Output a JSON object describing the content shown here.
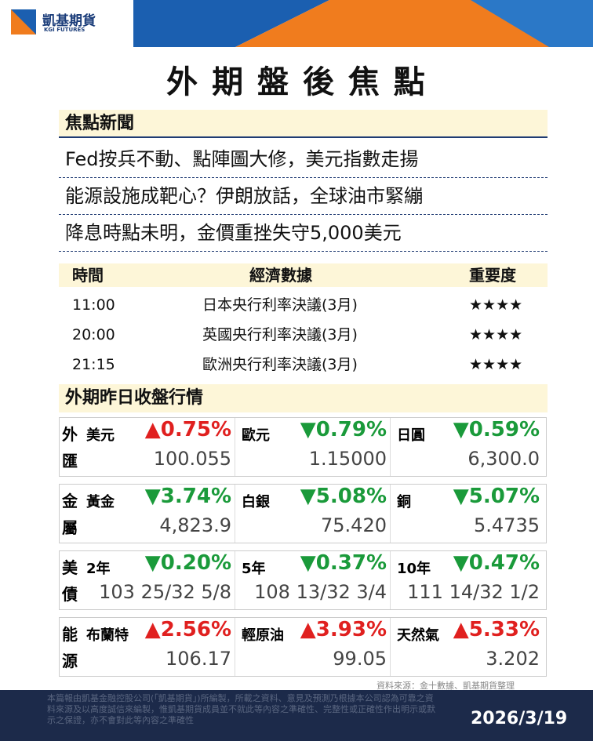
{
  "header": {
    "logo_name": "凱基期貨",
    "logo_sub": "KGI FUTURES",
    "title": "外 期 盤 後 焦 點"
  },
  "news": {
    "heading": "焦點新聞",
    "items": [
      "Fed按兵不動、點陣圖大修，美元指數走揚",
      "能源設施成靶心？伊朗放話，全球油市緊繃",
      "降息時點未明，金價重挫失守5,000美元"
    ]
  },
  "calendar": {
    "columns": [
      "時間",
      "經濟數據",
      "重要度"
    ],
    "rows": [
      [
        "11:00",
        "日本央行利率決議(3月)",
        "★★★★"
      ],
      [
        "20:00",
        "英國央行利率決議(3月)",
        "★★★★"
      ],
      [
        "21:15",
        "歐洲央行利率決議(3月)",
        "★★★★"
      ]
    ]
  },
  "market": {
    "heading": "外期昨日收盤行情",
    "groups": [
      {
        "label": "外匯",
        "items": [
          {
            "name": "美元",
            "change": "▲0.75%",
            "value": "100.055"
          },
          {
            "name": "歐元",
            "change": "▼0.79%",
            "value": "1.15000"
          },
          {
            "name": "日圓",
            "change": "▼0.59%",
            "value": "6,300.0"
          }
        ]
      },
      {
        "label": "金屬",
        "items": [
          {
            "name": "黃金",
            "change": "▼3.74%",
            "value": "4,823.9"
          },
          {
            "name": "白銀",
            "change": "▼5.08%",
            "value": "75.420"
          },
          {
            "name": "銅",
            "change": "▼5.07%",
            "value": "5.4735"
          }
        ]
      },
      {
        "label": "美債",
        "items": [
          {
            "name": "2年",
            "change": "▼0.20%",
            "value": "103 25/32 5/8"
          },
          {
            "name": "5年",
            "change": "▼0.37%",
            "value": "108 13/32 3/4"
          },
          {
            "name": "10年",
            "change": "▼0.47%",
            "value": "111 14/32 1/2"
          }
        ]
      },
      {
        "label": "能源",
        "items": [
          {
            "name": "布蘭特",
            "change": "▲2.56%",
            "value": "106.17"
          },
          {
            "name": "輕原油",
            "change": "▲3.93%",
            "value": "99.05"
          },
          {
            "name": "天然氣",
            "change": "▲5.33%",
            "value": "3.202"
          }
        ]
      }
    ]
  },
  "source": "資料來源：金十數據、凱基期貨整理",
  "disclaimer": "本篇報由凱基金融控股公司(「凱基期貨」)所編製，所載之資料、意見及預測乃根據本公司認為可靠之資料來源及以高度誠信來編製，惟凱基期貨成員並不就此等內容之準確性、完整性或正確性作出明示或默示之保證，亦不會對此等內容之準確性",
  "date": "2026/3/19"
}
